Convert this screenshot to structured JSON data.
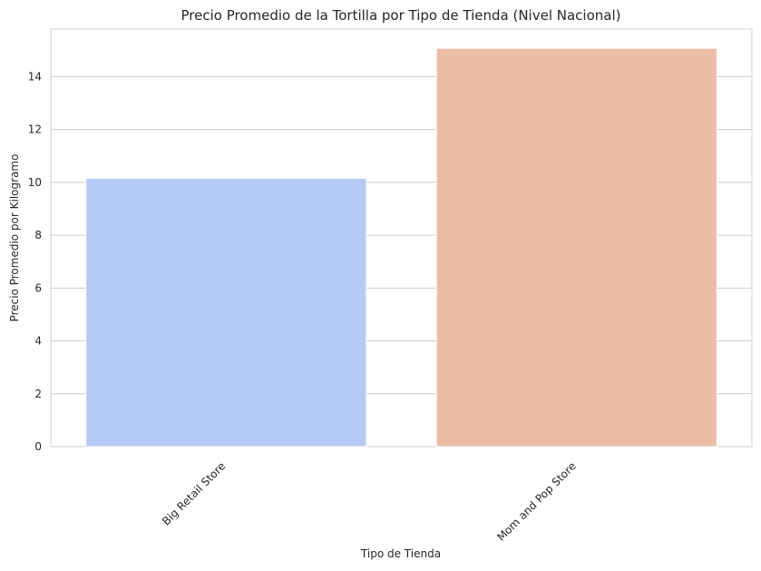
{
  "chart_data": {
    "type": "bar",
    "title": "Precio Promedio de la Tortilla por Tipo de Tienda (Nivel Nacional)",
    "xlabel": "Tipo de Tienda",
    "ylabel": "Precio Promedio por Kilogramo",
    "categories": [
      "Big Retail Store",
      "Mom and Pop Store"
    ],
    "values": [
      10.15,
      15.07
    ],
    "ylim": [
      0,
      15.8
    ],
    "yticks": [
      0,
      2,
      4,
      6,
      8,
      10,
      12,
      14
    ],
    "grid": "horizontal",
    "colors": [
      "#b5cbf5",
      "#ebbca6"
    ],
    "background": "#ffffff",
    "grid_color": "#cccccc"
  }
}
